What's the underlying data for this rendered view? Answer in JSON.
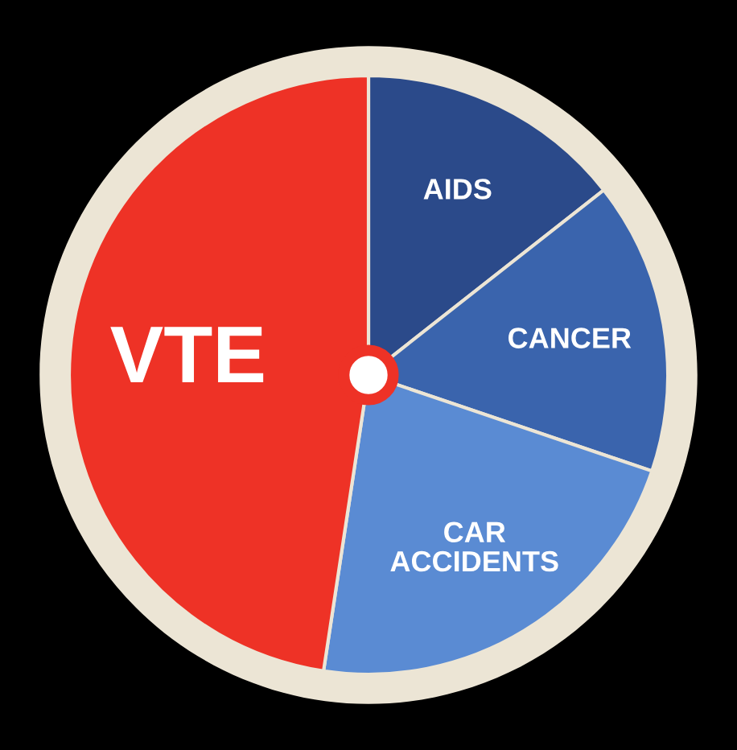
{
  "chart_data": {
    "type": "pie",
    "categories": [
      "AIDS",
      "CANCER",
      "CAR\nACCIDENTS",
      "VTE"
    ],
    "values": [
      14.4,
      15.8,
      22.2,
      47.6
    ],
    "colors": [
      "#2b4a8a",
      "#3a64ad",
      "#5a8bd3",
      "#ee3226"
    ]
  }
}
